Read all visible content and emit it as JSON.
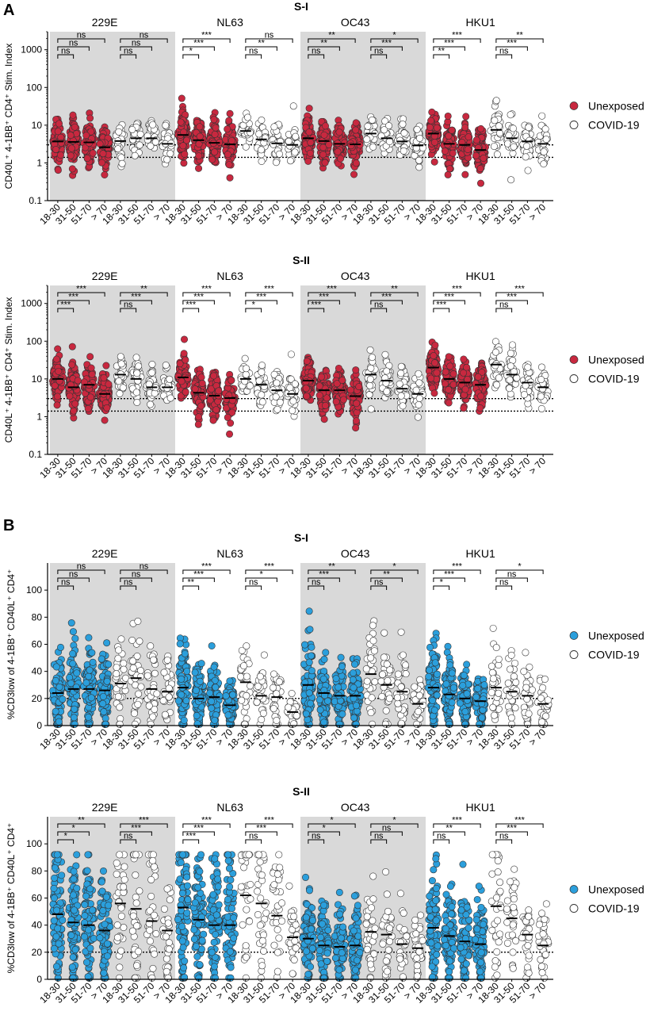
{
  "panels": [
    {
      "letter": "A"
    },
    {
      "letter": "B"
    }
  ],
  "common": {
    "virus_labels": [
      "229E",
      "NL63",
      "OC43",
      "HKU1"
    ],
    "group_labels": [
      "18-30",
      "31-50",
      "51-70",
      "> 70"
    ],
    "legend": [
      "Unexposed",
      "COVID-19"
    ]
  },
  "colors": {
    "unexposed_red": "#c8283f",
    "unexposed_blue": "#2b9fdc",
    "covid_fill": "#ffffff",
    "shade": "#d9d9d9",
    "stroke": "#333333"
  },
  "chart_data": [
    {
      "type": "scatter",
      "panel": "A",
      "title": "S-I",
      "ylabel": "CD40L⁺ 4-1BB⁺ CD4⁺ Stim. Index",
      "yscale": "log",
      "ylim": [
        0.1,
        3000
      ],
      "yticks": [
        "0.1",
        "1",
        "10",
        "100",
        "1000"
      ],
      "ytick_values": [
        0.1,
        1,
        10,
        100,
        1000
      ],
      "reference_lines": [
        3,
        1.4
      ],
      "unexposed_color": "red",
      "series": [
        {
          "name": "Unexposed",
          "virus": "229E",
          "medians": [
            3.7,
            3.6,
            3.5,
            2.6
          ]
        },
        {
          "name": "COVID-19",
          "virus": "229E",
          "medians": [
            3.8,
            4.5,
            4.5,
            3.2
          ]
        },
        {
          "name": "Unexposed",
          "virus": "NL63",
          "medians": [
            5.5,
            4.0,
            3.4,
            3.1
          ]
        },
        {
          "name": "COVID-19",
          "virus": "NL63",
          "medians": [
            7.0,
            4.2,
            3.3,
            3.0
          ]
        },
        {
          "name": "Unexposed",
          "virus": "OC43",
          "medians": [
            4.5,
            3.8,
            3.2,
            3.1
          ]
        },
        {
          "name": "COVID-19",
          "virus": "OC43",
          "medians": [
            6.0,
            4.5,
            3.7,
            2.9
          ]
        },
        {
          "name": "Unexposed",
          "virus": "HKU1",
          "medians": [
            6.0,
            3.2,
            3.0,
            2.2
          ]
        },
        {
          "name": "COVID-19",
          "virus": "HKU1",
          "medians": [
            7.5,
            4.5,
            3.7,
            3.2
          ]
        }
      ],
      "significance": [
        [
          "ns",
          "ns",
          "ns"
        ],
        [
          "ns",
          "ns",
          "ns"
        ],
        [
          "*",
          "***",
          "***"
        ],
        [
          "ns",
          "**",
          "ns"
        ],
        [
          "ns",
          "**",
          "**"
        ],
        [
          "ns",
          "***",
          "*"
        ],
        [
          "**",
          "***",
          "***"
        ],
        [
          "ns",
          "***",
          "**"
        ]
      ]
    },
    {
      "type": "scatter",
      "panel": "A",
      "title": "S-II",
      "ylabel": "CD40L⁺ 4-1BB⁺ CD4⁺ Stim. Index",
      "yscale": "log",
      "ylim": [
        0.1,
        3000
      ],
      "yticks": [
        "0.1",
        "1",
        "10",
        "100",
        "1000"
      ],
      "ytick_values": [
        0.1,
        1,
        10,
        100,
        1000
      ],
      "reference_lines": [
        3,
        1.4
      ],
      "unexposed_color": "red",
      "series": [
        {
          "name": "Unexposed",
          "virus": "229E",
          "medians": [
            10,
            6,
            7,
            4
          ]
        },
        {
          "name": "COVID-19",
          "virus": "229E",
          "medians": [
            13,
            10,
            6,
            6
          ]
        },
        {
          "name": "Unexposed",
          "virus": "NL63",
          "medians": [
            11,
            4.3,
            3.6,
            3.1
          ]
        },
        {
          "name": "COVID-19",
          "virus": "NL63",
          "medians": [
            10,
            7,
            5,
            4
          ]
        },
        {
          "name": "Unexposed",
          "virus": "OC43",
          "medians": [
            9,
            5,
            5,
            3.5
          ]
        },
        {
          "name": "COVID-19",
          "virus": "OC43",
          "medians": [
            13,
            9,
            5.5,
            4
          ]
        },
        {
          "name": "Unexposed",
          "virus": "HKU1",
          "medians": [
            20,
            10,
            8,
            7
          ]
        },
        {
          "name": "COVID-19",
          "virus": "HKU1",
          "medians": [
            24,
            13,
            8,
            6
          ]
        }
      ],
      "significance": [
        [
          "***",
          "***",
          "***"
        ],
        [
          "ns",
          "***",
          "**"
        ],
        [
          "***",
          "***",
          "***"
        ],
        [
          "*",
          "***",
          "***"
        ],
        [
          "***",
          "***",
          "***"
        ],
        [
          "ns",
          "***",
          "**"
        ],
        [
          "***",
          "***",
          "***"
        ],
        [
          "ns",
          "***",
          "***"
        ]
      ]
    },
    {
      "type": "scatter",
      "panel": "B",
      "title": "S-I",
      "ylabel": "%CD3low of 4-1BB⁺ CD40L⁺ CD4⁺",
      "yscale": "linear",
      "ylim": [
        0,
        120
      ],
      "yticks": [
        "0",
        "20",
        "40",
        "60",
        "80",
        "100"
      ],
      "ytick_values": [
        0,
        20,
        40,
        60,
        80,
        100
      ],
      "reference_lines": [
        20
      ],
      "unexposed_color": "blue",
      "series": [
        {
          "name": "Unexposed",
          "virus": "229E",
          "medians": [
            24,
            27,
            27,
            26
          ]
        },
        {
          "name": "COVID-19",
          "virus": "229E",
          "medians": [
            31,
            35,
            27,
            25
          ]
        },
        {
          "name": "Unexposed",
          "virus": "NL63",
          "medians": [
            28,
            20,
            21,
            15
          ]
        },
        {
          "name": "COVID-19",
          "virus": "NL63",
          "medians": [
            32,
            22,
            21,
            10
          ]
        },
        {
          "name": "Unexposed",
          "virus": "OC43",
          "medians": [
            30,
            24,
            22,
            22
          ]
        },
        {
          "name": "COVID-19",
          "virus": "OC43",
          "medians": [
            38,
            30,
            25,
            16
          ]
        },
        {
          "name": "Unexposed",
          "virus": "HKU1",
          "medians": [
            28,
            23,
            20,
            18
          ]
        },
        {
          "name": "COVID-19",
          "virus": "HKU1",
          "medians": [
            28,
            25,
            22,
            16
          ]
        }
      ],
      "significance": [
        [
          "ns",
          "ns",
          "ns"
        ],
        [
          "ns",
          "ns",
          "ns"
        ],
        [
          "**",
          "***",
          "***"
        ],
        [
          "ns",
          "*",
          "***"
        ],
        [
          "ns",
          "***",
          "**"
        ],
        [
          "ns",
          "**",
          "*"
        ],
        [
          "*",
          "***",
          "***"
        ],
        [
          "ns",
          "ns",
          "*"
        ]
      ]
    },
    {
      "type": "scatter",
      "panel": "B",
      "title": "S-II",
      "ylabel": "%CD3low of 4-1BB⁺ CD40L⁺ CD4⁺",
      "yscale": "linear",
      "ylim": [
        0,
        120
      ],
      "yticks": [
        "0",
        "20",
        "40",
        "60",
        "80",
        "100"
      ],
      "ytick_values": [
        0,
        20,
        40,
        60,
        80,
        100
      ],
      "reference_lines": [
        20
      ],
      "unexposed_color": "blue",
      "series": [
        {
          "name": "Unexposed",
          "virus": "229E",
          "medians": [
            48,
            42,
            40,
            36
          ]
        },
        {
          "name": "COVID-19",
          "virus": "229E",
          "medians": [
            56,
            52,
            43,
            36
          ]
        },
        {
          "name": "Unexposed",
          "virus": "NL63",
          "medians": [
            53,
            44,
            40,
            40
          ]
        },
        {
          "name": "COVID-19",
          "virus": "NL63",
          "medians": [
            62,
            56,
            47,
            31
          ]
        },
        {
          "name": "Unexposed",
          "virus": "OC43",
          "medians": [
            30,
            25,
            24,
            25
          ]
        },
        {
          "name": "COVID-19",
          "virus": "OC43",
          "medians": [
            35,
            33,
            26,
            23
          ]
        },
        {
          "name": "Unexposed",
          "virus": "HKU1",
          "medians": [
            38,
            32,
            28,
            26
          ]
        },
        {
          "name": "COVID-19",
          "virus": "HKU1",
          "medians": [
            54,
            45,
            33,
            25
          ]
        }
      ],
      "significance": [
        [
          "*",
          "*",
          "**"
        ],
        [
          "ns",
          "***",
          "***"
        ],
        [
          "***",
          "***",
          "***"
        ],
        [
          "ns",
          "***",
          "***"
        ],
        [
          "ns",
          "*",
          "*"
        ],
        [
          "ns",
          "ns",
          "*"
        ],
        [
          "ns",
          "**",
          "***"
        ],
        [
          "ns",
          "***",
          "***"
        ]
      ]
    }
  ]
}
